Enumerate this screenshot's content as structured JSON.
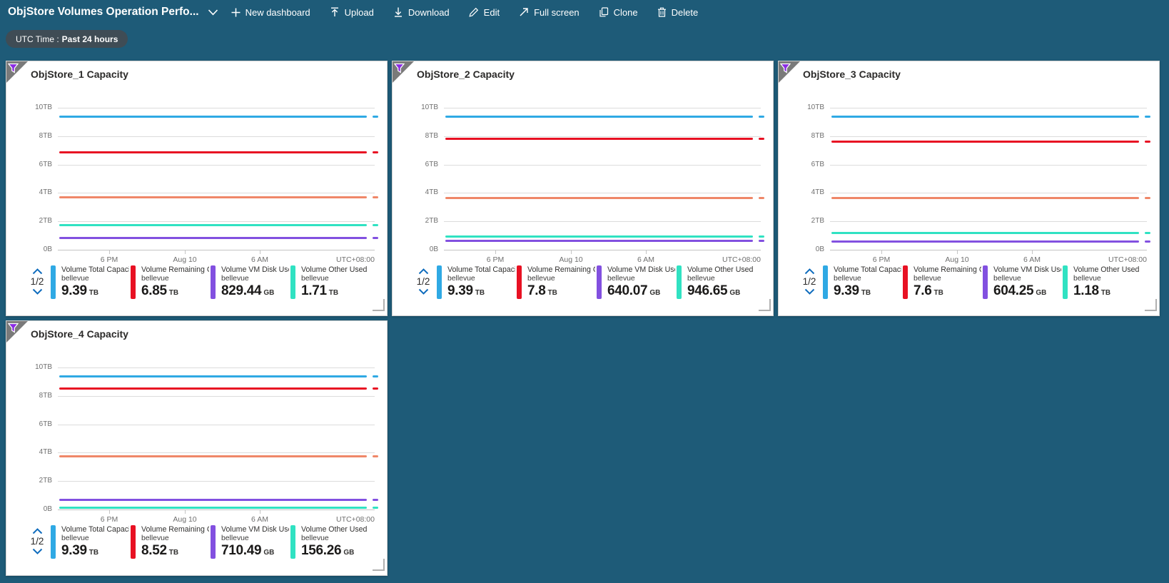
{
  "header": {
    "title": "ObjStore Volumes Operation Perfo...",
    "actions": [
      {
        "icon": "plus-icon",
        "label": "New dashboard"
      },
      {
        "icon": "upload-icon",
        "label": "Upload"
      },
      {
        "icon": "download-icon",
        "label": "Download"
      },
      {
        "icon": "edit-icon",
        "label": "Edit"
      },
      {
        "icon": "fullscreen-icon",
        "label": "Full screen"
      },
      {
        "icon": "clone-icon",
        "label": "Clone"
      },
      {
        "icon": "delete-icon",
        "label": "Delete"
      }
    ]
  },
  "filter_pill": {
    "prefix": "UTC Time :",
    "value": "Past 24 hours"
  },
  "axis": {
    "y_ticks": [
      "10TB",
      "8TB",
      "6TB",
      "4TB",
      "2TB",
      "0B"
    ],
    "x_ticks": [
      "6 PM",
      "Aug 10",
      "6 AM"
    ],
    "x_right_label": "UTC+08:00"
  },
  "colors": {
    "background": "#1e5b78",
    "pill_bg": "#3f4c55",
    "accent_blue": "#0f6cbd",
    "grid": "#dcdcdc",
    "series_total": "#2fa9e4",
    "series_remaining": "#e81123",
    "series_unlabeled": "#ef8768",
    "series_other_used": "#30e2c2",
    "series_vm_disk": "#8250e0"
  },
  "tiles": [
    {
      "title": "ObjStore_1 Capacity",
      "page_indicator": "1/2",
      "legend": [
        {
          "label": "Volume Total Capacit...",
          "sub": "bellevue",
          "value": "9.39",
          "unit": "TB",
          "color": "#2fa9e4"
        },
        {
          "label": "Volume Remaining Cap...",
          "sub": "bellevue",
          "value": "6.85",
          "unit": "TB",
          "color": "#e81123"
        },
        {
          "label": "Volume VM Disk Used ...",
          "sub": "bellevue",
          "value": "829.44",
          "unit": "GB",
          "color": "#8250e0"
        },
        {
          "label": "Volume Other Used Ca...",
          "sub": "bellevue",
          "value": "1.71",
          "unit": "TB",
          "color": "#30e2c2"
        }
      ]
    },
    {
      "title": "ObjStore_2 Capacity",
      "page_indicator": "1/2",
      "legend": [
        {
          "label": "Volume Total Capacit...",
          "sub": "bellevue",
          "value": "9.39",
          "unit": "TB",
          "color": "#2fa9e4"
        },
        {
          "label": "Volume Remaining Cap...",
          "sub": "bellevue",
          "value": "7.8",
          "unit": "TB",
          "color": "#e81123"
        },
        {
          "label": "Volume VM Disk Used ...",
          "sub": "bellevue",
          "value": "640.07",
          "unit": "GB",
          "color": "#8250e0"
        },
        {
          "label": "Volume Other Used Ca...",
          "sub": "bellevue",
          "value": "946.65",
          "unit": "GB",
          "color": "#30e2c2"
        }
      ]
    },
    {
      "title": "ObjStore_3 Capacity",
      "page_indicator": "1/2",
      "legend": [
        {
          "label": "Volume Total Capacit...",
          "sub": "bellevue",
          "value": "9.39",
          "unit": "TB",
          "color": "#2fa9e4"
        },
        {
          "label": "Volume Remaining Cap...",
          "sub": "bellevue",
          "value": "7.6",
          "unit": "TB",
          "color": "#e81123"
        },
        {
          "label": "Volume VM Disk Used ...",
          "sub": "bellevue",
          "value": "604.25",
          "unit": "GB",
          "color": "#8250e0"
        },
        {
          "label": "Volume Other Used Ca...",
          "sub": "bellevue",
          "value": "1.18",
          "unit": "TB",
          "color": "#30e2c2"
        }
      ]
    },
    {
      "title": "ObjStore_4 Capacity",
      "page_indicator": "1/2",
      "legend": [
        {
          "label": "Volume Total Capacit...",
          "sub": "bellevue",
          "value": "9.39",
          "unit": "TB",
          "color": "#2fa9e4"
        },
        {
          "label": "Volume Remaining Cap...",
          "sub": "bellevue",
          "value": "8.52",
          "unit": "TB",
          "color": "#e81123"
        },
        {
          "label": "Volume VM Disk Used ...",
          "sub": "bellevue",
          "value": "710.49",
          "unit": "GB",
          "color": "#8250e0"
        },
        {
          "label": "Volume Other Used Ca...",
          "sub": "bellevue",
          "value": "156.26",
          "unit": "GB",
          "color": "#30e2c2"
        }
      ]
    }
  ],
  "chart_data": [
    {
      "type": "line",
      "title": "ObjStore_1 Capacity",
      "xlabel_ticks": [
        "6 PM",
        "Aug 10",
        "6 AM",
        "UTC+08:00"
      ],
      "ylabel_ticks": [
        "10TB",
        "8TB",
        "6TB",
        "4TB",
        "2TB",
        "0B"
      ],
      "ylim_tb": [
        0,
        10
      ],
      "grid": true,
      "legend_position": "bottom",
      "series": [
        {
          "name": "Volume Total Capacit...",
          "color": "#2fa9e4",
          "value_tb": 9.39
        },
        {
          "name": "Volume Remaining Cap...",
          "color": "#e81123",
          "value_tb": 6.85
        },
        {
          "name": "",
          "color": "#ef8768",
          "value_tb": 3.7
        },
        {
          "name": "Volume Other Used Ca...",
          "color": "#30e2c2",
          "value_tb": 1.71
        },
        {
          "name": "Volume VM Disk Used ...",
          "color": "#8250e0",
          "value_tb": 0.81
        }
      ]
    },
    {
      "type": "line",
      "title": "ObjStore_2 Capacity",
      "xlabel_ticks": [
        "6 PM",
        "Aug 10",
        "6 AM",
        "UTC+08:00"
      ],
      "ylabel_ticks": [
        "10TB",
        "8TB",
        "6TB",
        "4TB",
        "2TB",
        "0B"
      ],
      "ylim_tb": [
        0,
        10
      ],
      "grid": true,
      "legend_position": "bottom",
      "series": [
        {
          "name": "Volume Total Capacit...",
          "color": "#2fa9e4",
          "value_tb": 9.39
        },
        {
          "name": "Volume Remaining Cap...",
          "color": "#e81123",
          "value_tb": 7.8
        },
        {
          "name": "",
          "color": "#ef8768",
          "value_tb": 3.65
        },
        {
          "name": "Volume Other Used Ca...",
          "color": "#30e2c2",
          "value_tb": 0.92
        },
        {
          "name": "Volume VM Disk Used ...",
          "color": "#8250e0",
          "value_tb": 0.62
        }
      ]
    },
    {
      "type": "line",
      "title": "ObjStore_3 Capacity",
      "xlabel_ticks": [
        "6 PM",
        "Aug 10",
        "6 AM",
        "UTC+08:00"
      ],
      "ylabel_ticks": [
        "10TB",
        "8TB",
        "6TB",
        "4TB",
        "2TB",
        "0B"
      ],
      "ylim_tb": [
        0,
        10
      ],
      "grid": true,
      "legend_position": "bottom",
      "series": [
        {
          "name": "Volume Total Capacit...",
          "color": "#2fa9e4",
          "value_tb": 9.39
        },
        {
          "name": "Volume Remaining Cap...",
          "color": "#e81123",
          "value_tb": 7.6
        },
        {
          "name": "",
          "color": "#ef8768",
          "value_tb": 3.65
        },
        {
          "name": "Volume Other Used Ca...",
          "color": "#30e2c2",
          "value_tb": 1.18
        },
        {
          "name": "Volume VM Disk Used ...",
          "color": "#8250e0",
          "value_tb": 0.59
        }
      ]
    },
    {
      "type": "line",
      "title": "ObjStore_4 Capacity",
      "xlabel_ticks": [
        "6 PM",
        "Aug 10",
        "6 AM",
        "UTC+08:00"
      ],
      "ylabel_ticks": [
        "10TB",
        "8TB",
        "6TB",
        "4TB",
        "2TB",
        "0B"
      ],
      "ylim_tb": [
        0,
        10
      ],
      "grid": true,
      "legend_position": "bottom",
      "series": [
        {
          "name": "Volume Total Capacit...",
          "color": "#2fa9e4",
          "value_tb": 9.39
        },
        {
          "name": "Volume Remaining Cap...",
          "color": "#e81123",
          "value_tb": 8.52
        },
        {
          "name": "",
          "color": "#ef8768",
          "value_tb": 3.75
        },
        {
          "name": "Volume VM Disk Used ...",
          "color": "#8250e0",
          "value_tb": 0.69
        },
        {
          "name": "Volume Other Used Ca...",
          "color": "#30e2c2",
          "value_tb": 0.15
        }
      ]
    }
  ]
}
